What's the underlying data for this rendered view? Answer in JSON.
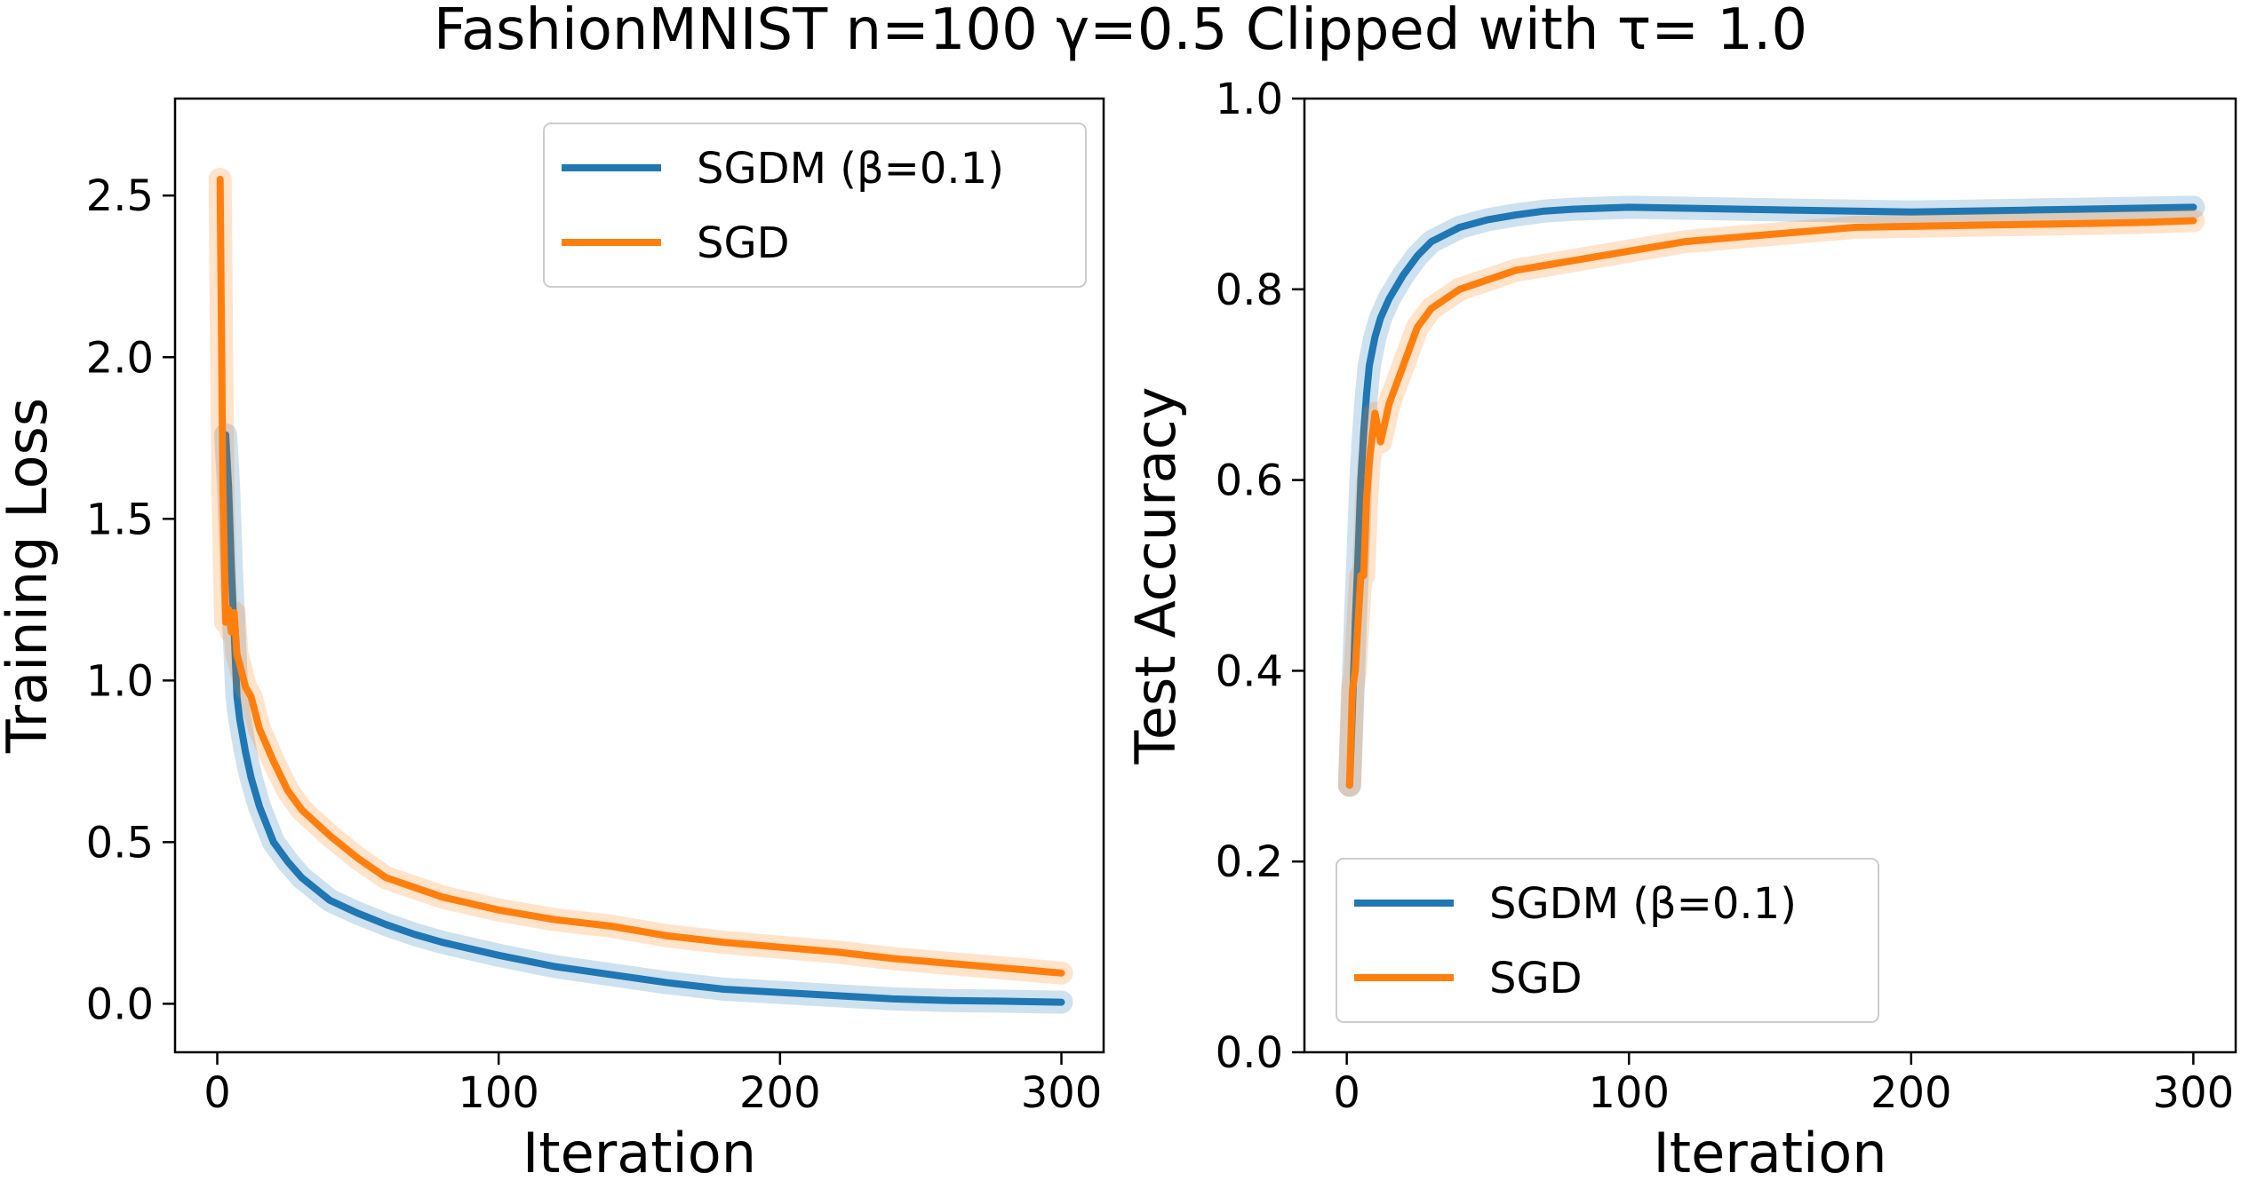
{
  "figure": {
    "title": "FashionMNIST n=100 γ=0.5 Clipped with τ= 1.0"
  },
  "colors": {
    "sgdm": "#1f77b4",
    "sgd": "#ff7f0e"
  },
  "chart_data": [
    {
      "type": "line",
      "xlabel": "Iteration",
      "ylabel": "Training Loss",
      "xlim": [
        -15,
        315
      ],
      "ylim": [
        -0.15,
        2.8
      ],
      "xticks": [
        0,
        100,
        200,
        300
      ],
      "yticks": [
        0.0,
        0.5,
        1.0,
        1.5,
        2.0,
        2.5
      ],
      "ytick_labels": [
        "0.0",
        "0.5",
        "1.0",
        "1.5",
        "2.0",
        "2.5"
      ],
      "legend": {
        "position": "top-right",
        "entries": [
          "SGDM (β=0.1)",
          "SGD"
        ]
      },
      "series": [
        {
          "name": "SGDM (β=0.1)",
          "color": "#1f77b4",
          "x": [
            3,
            4,
            5,
            6,
            7,
            8,
            10,
            12,
            15,
            20,
            25,
            30,
            40,
            50,
            60,
            70,
            80,
            100,
            120,
            140,
            160,
            180,
            200,
            220,
            240,
            260,
            280,
            300
          ],
          "y": [
            1.76,
            1.6,
            1.35,
            1.15,
            0.95,
            0.88,
            0.78,
            0.7,
            0.61,
            0.5,
            0.44,
            0.39,
            0.32,
            0.28,
            0.245,
            0.215,
            0.19,
            0.15,
            0.115,
            0.09,
            0.065,
            0.045,
            0.035,
            0.025,
            0.015,
            0.01,
            0.008,
            0.005
          ]
        },
        {
          "name": "SGD",
          "color": "#ff7f0e",
          "x": [
            1,
            2,
            3,
            4,
            5,
            6,
            7,
            8,
            10,
            12,
            15,
            20,
            25,
            30,
            40,
            50,
            60,
            70,
            80,
            100,
            120,
            140,
            160,
            180,
            200,
            220,
            240,
            260,
            280,
            300
          ],
          "y": [
            2.55,
            1.6,
            1.18,
            1.22,
            1.15,
            1.21,
            1.08,
            1.05,
            0.98,
            0.95,
            0.85,
            0.75,
            0.66,
            0.6,
            0.52,
            0.45,
            0.39,
            0.36,
            0.33,
            0.29,
            0.26,
            0.24,
            0.21,
            0.19,
            0.175,
            0.16,
            0.14,
            0.125,
            0.11,
            0.095
          ]
        }
      ]
    },
    {
      "type": "line",
      "xlabel": "Iteration",
      "ylabel": "Test Accuracy",
      "xlim": [
        -15,
        315
      ],
      "ylim": [
        0.0,
        1.0
      ],
      "xticks": [
        0,
        100,
        200,
        300
      ],
      "yticks": [
        0.0,
        0.2,
        0.4,
        0.6,
        0.8,
        1.0
      ],
      "ytick_labels": [
        "0.0",
        "0.2",
        "0.4",
        "0.6",
        "0.8",
        "1.0"
      ],
      "legend": {
        "position": "lower-left",
        "entries": [
          "SGDM (β=0.1)",
          "SGD"
        ]
      },
      "series": [
        {
          "name": "SGDM (β=0.1)",
          "color": "#1f77b4",
          "x": [
            1,
            2,
            3,
            4,
            5,
            6,
            7,
            8,
            10,
            12,
            15,
            20,
            25,
            30,
            40,
            50,
            60,
            70,
            80,
            100,
            120,
            140,
            160,
            180,
            200,
            220,
            240,
            260,
            280,
            300
          ],
          "y": [
            0.28,
            0.36,
            0.45,
            0.52,
            0.6,
            0.65,
            0.69,
            0.72,
            0.75,
            0.77,
            0.79,
            0.815,
            0.835,
            0.85,
            0.865,
            0.873,
            0.878,
            0.882,
            0.884,
            0.886,
            0.885,
            0.884,
            0.883,
            0.882,
            0.881,
            0.882,
            0.883,
            0.884,
            0.885,
            0.886
          ]
        },
        {
          "name": "SGD",
          "color": "#ff7f0e",
          "x": [
            1,
            2,
            3,
            4,
            5,
            6,
            7,
            8,
            10,
            12,
            15,
            20,
            25,
            30,
            40,
            50,
            60,
            70,
            80,
            100,
            120,
            140,
            160,
            180,
            200,
            220,
            240,
            260,
            280,
            300
          ],
          "y": [
            0.28,
            0.38,
            0.4,
            0.45,
            0.5,
            0.5,
            0.58,
            0.62,
            0.67,
            0.64,
            0.68,
            0.72,
            0.76,
            0.78,
            0.8,
            0.81,
            0.82,
            0.825,
            0.83,
            0.84,
            0.85,
            0.855,
            0.86,
            0.865,
            0.866,
            0.867,
            0.868,
            0.869,
            0.87,
            0.872
          ]
        }
      ]
    }
  ]
}
